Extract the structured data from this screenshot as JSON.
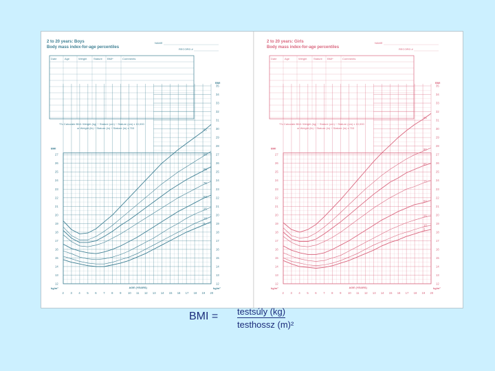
{
  "boys": {
    "title": "2 to 20 years: Boys",
    "subtitle": "Body mass index-for-age percentiles",
    "name_label": "NAME",
    "record_label": "RECORD #",
    "table_headers": [
      "Date",
      "Age",
      "Weight",
      "Stature",
      "BMI*",
      "Comments"
    ],
    "note_line1": "*To Calculate BMI: Weight (kg) ÷ Stature (cm) ÷ Stature (cm) x 10,000",
    "note_line2": "or Weight (lb) ÷ Stature (in) ÷ Stature (in) x 703",
    "y_unit_top": "BMI",
    "y_unit_bottom": "kg/m²",
    "x_title": "AGE (YEARS)",
    "color": "#3e7f93"
  },
  "girls": {
    "title": "2 to 20 years: Girls",
    "subtitle": "Body mass index-for-age percentiles",
    "name_label": "NAME",
    "record_label": "RECORD #",
    "table_headers": [
      "Date",
      "Age",
      "Weight",
      "Stature",
      "BMI*",
      "Comments"
    ],
    "note_line1": "*To Calculate BMI: Weight (kg) ÷ Stature (cm) ÷ Stature (cm) x 10,000",
    "note_line2": "or Weight (lb) ÷ Stature (in) ÷ Stature (in) x 703",
    "y_unit_top": "BMI",
    "y_unit_bottom": "kg/m²",
    "x_title": "AGE (YEARS)",
    "color": "#d9667e"
  },
  "formula": {
    "label": "BMI =",
    "numerator": "testsúly (kg)",
    "denominator": "testhossz (m)²"
  },
  "chart_data": [
    {
      "type": "line",
      "title": "2 to 20 years: Boys",
      "xlabel": "AGE (YEARS)",
      "ylabel": "BMI",
      "xlim": [
        2,
        20
      ],
      "ylim": [
        12,
        35
      ],
      "x_ticks": [
        2,
        3,
        4,
        5,
        6,
        7,
        8,
        9,
        10,
        11,
        12,
        13,
        14,
        15,
        16,
        17,
        18,
        19,
        20
      ],
      "y_ticks_left": [
        12,
        13,
        14,
        15,
        16,
        17,
        18,
        19,
        20,
        21,
        22,
        23,
        24,
        25,
        26,
        27
      ],
      "y_ticks_right": [
        12,
        13,
        14,
        15,
        16,
        17,
        18,
        19,
        20,
        21,
        22,
        23,
        24,
        25,
        26,
        27,
        28,
        29,
        30,
        31,
        32,
        33,
        34,
        35
      ],
      "grid": true,
      "x": [
        2,
        3,
        4,
        5,
        6,
        7,
        8,
        9,
        10,
        11,
        12,
        13,
        14,
        15,
        16,
        17,
        18,
        19,
        20
      ],
      "series": [
        {
          "name": "95",
          "values": [
            19.3,
            18.3,
            17.8,
            17.9,
            18.4,
            19.2,
            20.0,
            21.0,
            22.0,
            23.0,
            24.0,
            25.0,
            26.0,
            26.8,
            27.6,
            28.3,
            29.0,
            29.7,
            30.5
          ]
        },
        {
          "name": "90",
          "values": [
            18.6,
            17.6,
            17.1,
            17.1,
            17.5,
            18.1,
            18.8,
            19.6,
            20.4,
            21.2,
            22.0,
            22.8,
            23.6,
            24.3,
            25.0,
            25.6,
            26.2,
            26.8,
            27.4
          ]
        },
        {
          "name": "85",
          "values": [
            18.2,
            17.3,
            16.8,
            16.8,
            17.0,
            17.5,
            18.1,
            18.8,
            19.4,
            20.1,
            20.8,
            21.5,
            22.2,
            22.9,
            23.5,
            24.1,
            24.6,
            25.1,
            25.6
          ]
        },
        {
          "name": "75",
          "values": [
            17.7,
            16.9,
            16.4,
            16.3,
            16.5,
            16.8,
            17.3,
            17.8,
            18.4,
            19.0,
            19.6,
            20.2,
            20.8,
            21.4,
            22.0,
            22.5,
            23.0,
            23.5,
            23.9
          ]
        },
        {
          "name": "50",
          "values": [
            16.6,
            16.1,
            15.8,
            15.6,
            15.5,
            15.7,
            16.0,
            16.4,
            16.9,
            17.4,
            18.0,
            18.6,
            19.2,
            19.8,
            20.4,
            20.9,
            21.4,
            21.9,
            22.3
          ]
        },
        {
          "name": "25",
          "values": [
            15.8,
            15.5,
            15.1,
            14.9,
            14.8,
            14.9,
            15.1,
            15.4,
            15.8,
            16.3,
            16.8,
            17.3,
            17.9,
            18.5,
            19.0,
            19.6,
            20.1,
            20.5,
            20.9
          ]
        },
        {
          "name": "10",
          "values": [
            15.2,
            14.9,
            14.6,
            14.4,
            14.3,
            14.3,
            14.5,
            14.8,
            15.1,
            15.5,
            16.0,
            16.5,
            17.0,
            17.5,
            18.0,
            18.5,
            19.0,
            19.4,
            19.8
          ]
        },
        {
          "name": "5",
          "values": [
            14.8,
            14.5,
            14.3,
            14.1,
            14.0,
            14.0,
            14.2,
            14.4,
            14.7,
            15.1,
            15.5,
            16.0,
            16.5,
            17.0,
            17.5,
            18.0,
            18.4,
            18.8,
            19.2
          ]
        }
      ]
    },
    {
      "type": "line",
      "title": "2 to 20 years: Girls",
      "xlabel": "AGE (YEARS)",
      "ylabel": "BMI",
      "xlim": [
        2,
        20
      ],
      "ylim": [
        12,
        35
      ],
      "x_ticks": [
        2,
        3,
        4,
        5,
        6,
        7,
        8,
        9,
        10,
        11,
        12,
        13,
        14,
        15,
        16,
        17,
        18,
        19,
        20
      ],
      "y_ticks_left": [
        12,
        13,
        14,
        15,
        16,
        17,
        18,
        19,
        20,
        21,
        22,
        23,
        24,
        25,
        26,
        27
      ],
      "y_ticks_right": [
        12,
        13,
        14,
        15,
        16,
        17,
        18,
        19,
        20,
        21,
        22,
        23,
        24,
        25,
        26,
        27,
        28,
        29,
        30,
        31,
        32,
        33,
        34,
        35
      ],
      "grid": true,
      "x": [
        2,
        3,
        4,
        5,
        6,
        7,
        8,
        9,
        10,
        11,
        12,
        13,
        14,
        15,
        16,
        17,
        18,
        19,
        20
      ],
      "series": [
        {
          "name": "95",
          "values": [
            19.1,
            18.3,
            18.0,
            18.3,
            18.9,
            19.8,
            20.8,
            21.8,
            22.9,
            24.0,
            25.1,
            26.2,
            27.2,
            28.1,
            29.0,
            29.8,
            30.5,
            31.1,
            31.8
          ]
        },
        {
          "name": "90",
          "values": [
            18.5,
            17.6,
            17.3,
            17.4,
            17.9,
            18.6,
            19.4,
            20.3,
            21.2,
            22.1,
            23.0,
            23.8,
            24.6,
            25.3,
            25.9,
            26.5,
            27.0,
            27.4,
            27.8
          ]
        },
        {
          "name": "85",
          "values": [
            18.0,
            17.2,
            16.9,
            16.9,
            17.2,
            17.8,
            18.5,
            19.2,
            20.0,
            20.8,
            21.6,
            22.4,
            23.1,
            23.8,
            24.3,
            24.9,
            25.3,
            25.7,
            26.0
          ]
        },
        {
          "name": "75",
          "values": [
            17.5,
            16.8,
            16.4,
            16.3,
            16.5,
            16.9,
            17.4,
            18.0,
            18.7,
            19.4,
            20.1,
            20.8,
            21.4,
            22.0,
            22.5,
            23.0,
            23.3,
            23.7,
            24.0
          ]
        },
        {
          "name": "50",
          "values": [
            16.4,
            15.9,
            15.6,
            15.4,
            15.4,
            15.6,
            16.0,
            16.5,
            17.0,
            17.6,
            18.2,
            18.8,
            19.4,
            19.9,
            20.4,
            20.8,
            21.2,
            21.4,
            21.7
          ]
        },
        {
          "name": "25",
          "values": [
            15.6,
            15.2,
            14.9,
            14.7,
            14.6,
            14.7,
            15.0,
            15.3,
            15.8,
            16.3,
            16.8,
            17.3,
            17.8,
            18.3,
            18.7,
            19.1,
            19.4,
            19.7,
            19.9
          ]
        },
        {
          "name": "10",
          "values": [
            15.0,
            14.6,
            14.4,
            14.2,
            14.1,
            14.2,
            14.4,
            14.7,
            15.1,
            15.5,
            16.0,
            16.5,
            16.9,
            17.3,
            17.7,
            18.0,
            18.3,
            18.6,
            18.8
          ]
        },
        {
          "name": "5",
          "values": [
            14.7,
            14.3,
            14.0,
            13.9,
            13.8,
            13.9,
            14.1,
            14.4,
            14.7,
            15.1,
            15.5,
            15.9,
            16.4,
            16.8,
            17.1,
            17.5,
            17.8,
            18.1,
            18.3
          ]
        }
      ]
    }
  ]
}
